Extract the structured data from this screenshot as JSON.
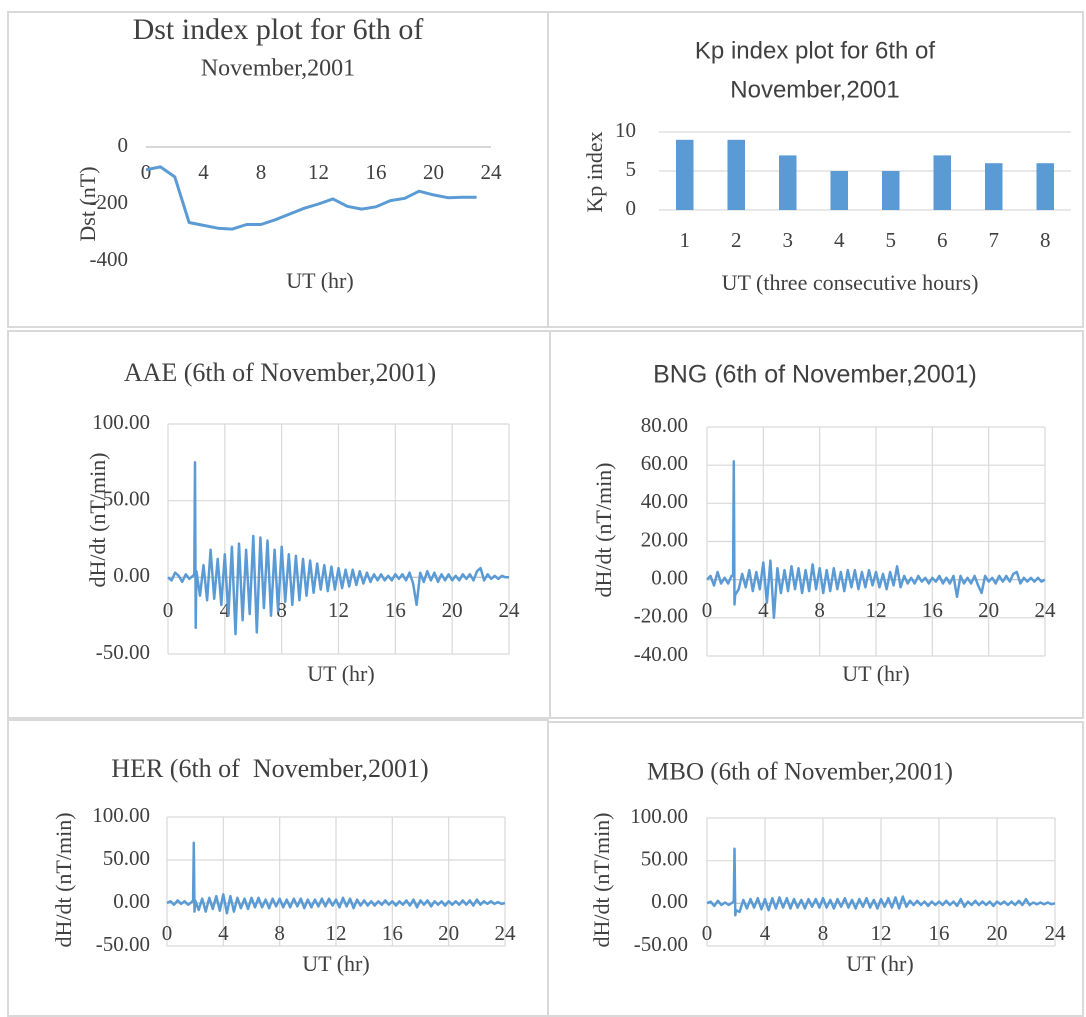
{
  "chart_data": [
    {
      "type": "line",
      "title": [
        "Dst index plot for 6th of",
        "November,2001"
      ],
      "y_label": "Dst (nT)",
      "x_label": "UT (hr)",
      "x": [
        0,
        1,
        2,
        3,
        4,
        5,
        6,
        7,
        8,
        9,
        10,
        11,
        12,
        13,
        14,
        15,
        16,
        17,
        18,
        19,
        20,
        21,
        22,
        23
      ],
      "values": [
        -80,
        -70,
        -105,
        -265,
        -275,
        -285,
        -288,
        -272,
        -272,
        -255,
        -235,
        -215,
        -200,
        -182,
        -208,
        -218,
        -210,
        -188,
        -180,
        -155,
        -168,
        -178,
        -176,
        -176
      ],
      "color": "#5b9bd5",
      "xlim": [
        0,
        24
      ],
      "xticks": [
        0,
        4,
        8,
        12,
        16,
        20,
        24
      ],
      "ylim": [
        -400,
        0
      ],
      "yticks": [
        0,
        -200,
        -400
      ],
      "grid": false
    },
    {
      "type": "bar",
      "title": [
        "Kp index plot for 6th of",
        "November,2001"
      ],
      "y_label": "Kp index",
      "x_label": "UT (three consecutive hours)",
      "categories": [
        "1",
        "2",
        "3",
        "4",
        "5",
        "6",
        "7",
        "8"
      ],
      "values": [
        9,
        9,
        7,
        5,
        5,
        7,
        6,
        6
      ],
      "color": "#5b9bd5",
      "ylim": [
        0,
        10
      ],
      "yticks": [
        0,
        5,
        10
      ],
      "grid": true
    },
    {
      "type": "line",
      "title": "AAE (6th of November,2001)",
      "y_label": "dH/dt (nT/min)",
      "x_label": "UT (hr)",
      "x": [
        0,
        0.25,
        0.5,
        0.75,
        1,
        1.25,
        1.5,
        1.75,
        1.85,
        1.9,
        1.95,
        2,
        2.25,
        2.5,
        2.75,
        3,
        3.25,
        3.5,
        3.75,
        4,
        4.25,
        4.5,
        4.75,
        5,
        5.25,
        5.5,
        5.75,
        6,
        6.25,
        6.5,
        6.75,
        7,
        7.25,
        7.5,
        7.75,
        8,
        8.25,
        8.5,
        8.75,
        9,
        9.25,
        9.5,
        9.75,
        10,
        10.25,
        10.5,
        10.75,
        11,
        11.25,
        11.5,
        11.75,
        12,
        12.25,
        12.5,
        12.75,
        13,
        13.25,
        13.5,
        13.75,
        14,
        14.25,
        14.5,
        14.75,
        15,
        15.25,
        15.5,
        15.75,
        16,
        16.25,
        16.5,
        16.75,
        17,
        17.25,
        17.5,
        17.75,
        18,
        18.25,
        18.5,
        18.75,
        19,
        19.25,
        19.5,
        19.75,
        20,
        20.25,
        20.5,
        20.75,
        21,
        21.25,
        21.5,
        21.75,
        22,
        22.25,
        22.5,
        22.75,
        23,
        23.25,
        23.5,
        23.75,
        24
      ],
      "values": [
        0,
        -2,
        3,
        1,
        -3,
        2,
        -1,
        1,
        2,
        75,
        -33,
        4,
        -12,
        8,
        -15,
        18,
        -14,
        12,
        -18,
        15,
        -25,
        20,
        -37,
        22,
        -28,
        18,
        -24,
        27,
        -36,
        26,
        -20,
        24,
        -25,
        18,
        -22,
        20,
        -16,
        15,
        -18,
        14,
        -15,
        12,
        -12,
        11,
        -10,
        9,
        -8,
        8,
        -9,
        7,
        -8,
        6,
        -7,
        5,
        -6,
        5,
        -5,
        4,
        -4,
        3,
        -3,
        2,
        -2,
        2,
        -2,
        1,
        -2,
        2,
        -1,
        2,
        -2,
        3,
        -4,
        -18,
        3,
        -3,
        4,
        -2,
        3,
        -3,
        2,
        -2,
        2,
        -2,
        1,
        -2,
        2,
        -1,
        2,
        -2,
        4,
        6,
        -2,
        2,
        -1,
        1,
        -1,
        1,
        0,
        0
      ],
      "color": "#5b9bd5",
      "xlim": [
        0,
        24
      ],
      "xticks": [
        0,
        4,
        8,
        12,
        16,
        20,
        24
      ],
      "ylim": [
        -50,
        100
      ],
      "yticks": [
        {
          "value": -50,
          "label": "-50.00"
        },
        {
          "value": 0,
          "label": "0.00"
        },
        {
          "value": 50,
          "label": "50.00"
        },
        {
          "value": 100,
          "label": "100.00"
        }
      ],
      "grid": true
    },
    {
      "type": "line",
      "title": "BNG (6th of November,2001)",
      "y_label": "dH/dt (nT/min)",
      "x_label": "UT (hr)",
      "x": [
        0,
        0.25,
        0.5,
        0.75,
        1,
        1.25,
        1.5,
        1.75,
        1.85,
        1.9,
        1.95,
        2,
        2.25,
        2.5,
        2.75,
        3,
        3.25,
        3.5,
        3.75,
        4,
        4.25,
        4.5,
        4.75,
        5,
        5.25,
        5.5,
        5.75,
        6,
        6.25,
        6.5,
        6.75,
        7,
        7.25,
        7.5,
        7.75,
        8,
        8.25,
        8.5,
        8.75,
        9,
        9.25,
        9.5,
        9.75,
        10,
        10.25,
        10.5,
        10.75,
        11,
        11.25,
        11.5,
        11.75,
        12,
        12.25,
        12.5,
        12.75,
        13,
        13.25,
        13.5,
        13.75,
        14,
        14.25,
        14.5,
        14.75,
        15,
        15.25,
        15.5,
        15.75,
        16,
        16.25,
        16.5,
        16.75,
        17,
        17.25,
        17.5,
        17.75,
        18,
        18.25,
        18.5,
        18.75,
        19,
        19.25,
        19.5,
        19.75,
        20,
        20.25,
        20.5,
        20.75,
        21,
        21.25,
        21.5,
        21.75,
        22,
        22.25,
        22.5,
        22.75,
        23,
        23.25,
        23.5,
        23.75,
        24
      ],
      "values": [
        0,
        2,
        -3,
        4,
        -2,
        1,
        -2,
        2,
        2,
        62,
        -13,
        -8,
        -5,
        3,
        -4,
        5,
        -6,
        4,
        -5,
        9,
        -12,
        10,
        -20,
        6,
        -7,
        5,
        -6,
        7,
        -5,
        6,
        -7,
        5,
        -6,
        8,
        -5,
        6,
        -7,
        5,
        -6,
        6,
        -5,
        4,
        -6,
        5,
        -4,
        5,
        -5,
        4,
        -4,
        5,
        -3,
        4,
        -4,
        3,
        -5,
        4,
        -3,
        7,
        -4,
        2,
        -2,
        1,
        -2,
        2,
        -1,
        1,
        -2,
        1,
        -1,
        2,
        -2,
        1,
        -2,
        2,
        -9,
        2,
        -2,
        1,
        -2,
        2,
        -3,
        -7,
        2,
        -1,
        1,
        -2,
        2,
        -1,
        2,
        -1,
        3,
        4,
        -2,
        1,
        -1,
        1,
        -1,
        1,
        -1,
        0
      ],
      "color": "#5b9bd5",
      "xlim": [
        0,
        24
      ],
      "xticks": [
        0,
        4,
        8,
        12,
        16,
        20,
        24
      ],
      "ylim": [
        -40,
        80
      ],
      "yticks": [
        {
          "value": -40,
          "label": "-40.00"
        },
        {
          "value": -20,
          "label": "-20.00"
        },
        {
          "value": 0,
          "label": "0.00"
        },
        {
          "value": 20,
          "label": "20.00"
        },
        {
          "value": 40,
          "label": "40.00"
        },
        {
          "value": 60,
          "label": "60.00"
        },
        {
          "value": 80,
          "label": "80.00"
        }
      ],
      "grid": true
    },
    {
      "type": "line",
      "title": "HER (6th of  November,2001)",
      "y_label": "dH/dt (nT/min)",
      "x_label": "UT (hr)",
      "x": [
        0,
        0.25,
        0.5,
        0.75,
        1,
        1.25,
        1.5,
        1.75,
        1.85,
        1.9,
        1.95,
        2,
        2.25,
        2.5,
        2.75,
        3,
        3.25,
        3.5,
        3.75,
        4,
        4.25,
        4.5,
        4.75,
        5,
        5.25,
        5.5,
        5.75,
        6,
        6.25,
        6.5,
        6.75,
        7,
        7.25,
        7.5,
        7.75,
        8,
        8.25,
        8.5,
        8.75,
        9,
        9.25,
        9.5,
        9.75,
        10,
        10.25,
        10.5,
        10.75,
        11,
        11.25,
        11.5,
        11.75,
        12,
        12.25,
        12.5,
        12.75,
        13,
        13.25,
        13.5,
        13.75,
        14,
        14.25,
        14.5,
        14.75,
        15,
        15.25,
        15.5,
        15.75,
        16,
        16.25,
        16.5,
        16.75,
        17,
        17.25,
        17.5,
        17.75,
        18,
        18.25,
        18.5,
        18.75,
        19,
        19.25,
        19.5,
        19.75,
        20,
        20.25,
        20.5,
        20.75,
        21,
        21.25,
        21.5,
        21.75,
        22,
        22.25,
        22.5,
        22.75,
        23,
        23.25,
        23.5,
        23.75,
        24
      ],
      "values": [
        0,
        2,
        -2,
        3,
        -1,
        2,
        -2,
        1,
        3,
        70,
        -10,
        3,
        -8,
        5,
        -10,
        6,
        -7,
        8,
        -9,
        10,
        -12,
        8,
        -10,
        6,
        -6,
        5,
        -7,
        6,
        -5,
        6,
        -5,
        4,
        -6,
        5,
        -4,
        5,
        -5,
        4,
        -5,
        5,
        -4,
        5,
        -6,
        4,
        -5,
        4,
        -4,
        5,
        -4,
        5,
        -3,
        4,
        -5,
        6,
        -4,
        5,
        -6,
        4,
        -3,
        3,
        -3,
        2,
        -3,
        2,
        -2,
        3,
        -2,
        2,
        -3,
        2,
        -2,
        3,
        -3,
        4,
        -5,
        3,
        -2,
        3,
        -4,
        2,
        -2,
        2,
        -3,
        2,
        -2,
        2,
        -2,
        3,
        -2,
        3,
        -3,
        4,
        -2,
        2,
        -1,
        2,
        -1,
        1,
        -1,
        0
      ],
      "color": "#5b9bd5",
      "xlim": [
        0,
        24
      ],
      "xticks": [
        0,
        4,
        8,
        12,
        16,
        20,
        24
      ],
      "ylim": [
        -50,
        100
      ],
      "yticks": [
        {
          "value": -50,
          "label": "-50.00"
        },
        {
          "value": 0,
          "label": "0.00"
        },
        {
          "value": 50,
          "label": "50.00"
        },
        {
          "value": 100,
          "label": "100.00"
        }
      ],
      "grid": true
    },
    {
      "type": "line",
      "title": "MBO (6th of November,2001)",
      "y_label": "dH/dt (nT/min)",
      "x_label": "UT (hr)",
      "x": [
        0,
        0.25,
        0.5,
        0.75,
        1,
        1.25,
        1.5,
        1.75,
        1.85,
        1.9,
        1.95,
        2,
        2.25,
        2.5,
        2.75,
        3,
        3.25,
        3.5,
        3.75,
        4,
        4.25,
        4.5,
        4.75,
        5,
        5.25,
        5.5,
        5.75,
        6,
        6.25,
        6.5,
        6.75,
        7,
        7.25,
        7.5,
        7.75,
        8,
        8.25,
        8.5,
        8.75,
        9,
        9.25,
        9.5,
        9.75,
        10,
        10.25,
        10.5,
        10.75,
        11,
        11.25,
        11.5,
        11.75,
        12,
        12.25,
        12.5,
        12.75,
        13,
        13.25,
        13.5,
        13.75,
        14,
        14.25,
        14.5,
        14.75,
        15,
        15.25,
        15.5,
        15.75,
        16,
        16.25,
        16.5,
        16.75,
        17,
        17.25,
        17.5,
        17.75,
        18,
        18.25,
        18.5,
        18.75,
        19,
        19.25,
        19.5,
        19.75,
        20,
        20.25,
        20.5,
        20.75,
        21,
        21.25,
        21.5,
        21.75,
        22,
        22.25,
        22.5,
        22.75,
        23,
        23.25,
        23.5,
        23.75,
        24
      ],
      "values": [
        0,
        2,
        -3,
        3,
        -2,
        1,
        -2,
        1,
        2,
        64,
        -14,
        -8,
        -10,
        4,
        -6,
        5,
        -5,
        6,
        -7,
        5,
        -8,
        6,
        -6,
        7,
        -5,
        6,
        -6,
        5,
        -5,
        4,
        -6,
        5,
        -4,
        5,
        -5,
        6,
        -5,
        4,
        -6,
        5,
        -4,
        6,
        -5,
        4,
        -6,
        5,
        -4,
        6,
        -5,
        4,
        -6,
        5,
        -4,
        6,
        -5,
        7,
        -6,
        8,
        -4,
        3,
        -2,
        3,
        -2,
        2,
        -3,
        2,
        -2,
        2,
        -2,
        3,
        -2,
        2,
        -3,
        5,
        -4,
        2,
        -2,
        3,
        -2,
        2,
        -2,
        2,
        -3,
        2,
        -1,
        2,
        -2,
        2,
        -2,
        3,
        -2,
        5,
        -2,
        1,
        -1,
        1,
        -1,
        1,
        -1,
        0
      ],
      "color": "#5b9bd5",
      "xlim": [
        0,
        24
      ],
      "xticks": [
        0,
        4,
        8,
        12,
        16,
        20,
        24
      ],
      "ylim": [
        -50,
        100
      ],
      "yticks": [
        {
          "value": -50,
          "label": "-50.00"
        },
        {
          "value": 0,
          "label": "0.00"
        },
        {
          "value": 50,
          "label": "50.00"
        },
        {
          "value": 100,
          "label": "100.00"
        }
      ],
      "grid": true
    }
  ]
}
